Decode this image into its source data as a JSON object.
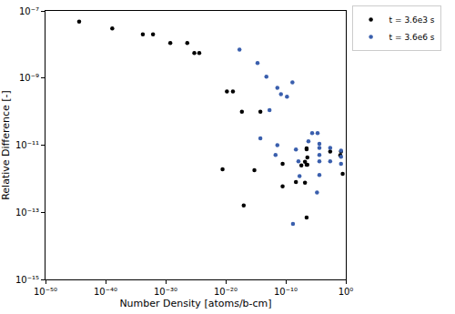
{
  "chart_data": {
    "type": "scatter",
    "x_label": "Number Density [atoms/b-cm]",
    "y_label": "Relative Difference [-]",
    "log": true,
    "grid": false,
    "legend": "right",
    "marker": "circle",
    "xlim": [
      1e-50,
      1
    ],
    "ylim": [
      1e-15,
      1e-07
    ],
    "xticks": [
      {
        "value": 1e-50,
        "label": "10⁻⁵⁰"
      },
      {
        "value": 1e-40,
        "label": "10⁻⁴⁰"
      },
      {
        "value": 1e-30,
        "label": "10⁻³⁰"
      },
      {
        "value": 1e-20,
        "label": "10⁻²⁰"
      },
      {
        "value": 1e-10,
        "label": "10⁻¹⁰"
      },
      {
        "value": 1,
        "label": "10⁰"
      }
    ],
    "yticks": [
      {
        "value": 1e-15,
        "label": "10⁻¹⁵"
      },
      {
        "value": 1e-13,
        "label": "10⁻¹³"
      },
      {
        "value": 1e-11,
        "label": "10⁻¹¹"
      },
      {
        "value": 1e-09,
        "label": "10⁻⁹"
      },
      {
        "value": 1e-07,
        "label": "10⁻⁷"
      }
    ],
    "series": [
      {
        "name": "t = 3.6e3 s",
        "color": "#000000",
        "x": [
          4e-45,
          1.3e-39,
          1.6e-34,
          8e-33,
          6e-30,
          4e-27,
          6e-26,
          4e-25,
          1.6e-20,
          1.6e-19,
          5e-18,
          6e-15,
          3e-21,
          6e-16,
          1e-17,
          3e-11,
          3e-11,
          5e-09,
          4e-08,
          1.6e-07,
          1.6e-07,
          3e-07,
          3e-07,
          4e-07,
          4e-07,
          3e-07,
          3e-07,
          0.0025,
          0.16,
          0.3,
          0.12
        ],
        "values": [
          4.8e-08,
          3e-08,
          2e-08,
          2e-08,
          1.1e-08,
          1.1e-08,
          5.6e-09,
          5.6e-09,
          4e-10,
          4e-10,
          1e-10,
          1e-10,
          1.9e-12,
          1.8e-12,
          1.6e-13,
          2.8e-12,
          5.9e-13,
          8e-13,
          2.5e-12,
          3.2e-12,
          7.6e-13,
          7e-14,
          2.6e-12,
          2.6e-12,
          4.3e-12,
          8e-12,
          7.5e-12,
          6.5e-12,
          6.5e-12,
          1.4e-12,
          5e-12
        ]
      },
      {
        "name": "t = 3.6e6 s",
        "color": "#3a5fad",
        "x": [
          2e-18,
          2e-15,
          6e-14,
          4e-12,
          1.6e-11,
          1.3e-09,
          1.6e-10,
          2e-13,
          6e-15,
          4e-12,
          2e-12,
          5e-09,
          1.3e-08,
          2e-08,
          1.6e-09,
          2.5e-06,
          2e-05,
          6e-07,
          4e-05,
          4e-05,
          4e-05,
          4e-05,
          4e-05,
          1.6e-05,
          0.0025,
          0.0025,
          0.16,
          0.16,
          0.16
        ],
        "values": [
          7e-09,
          2.8e-09,
          1.1e-09,
          5.1e-10,
          3.3e-10,
          7.4e-10,
          2.8e-10,
          1.1e-10,
          1.6e-11,
          1e-11,
          5.1e-12,
          7.4e-12,
          3.3e-12,
          1.2e-12,
          4.5e-14,
          2.3e-11,
          2.3e-11,
          1.3e-11,
          1.1e-11,
          8.3e-12,
          5.1e-12,
          3.3e-12,
          1.3e-12,
          3.9e-13,
          8.3e-12,
          3.3e-12,
          6.9e-12,
          4.5e-12,
          2.8e-12
        ]
      }
    ]
  }
}
